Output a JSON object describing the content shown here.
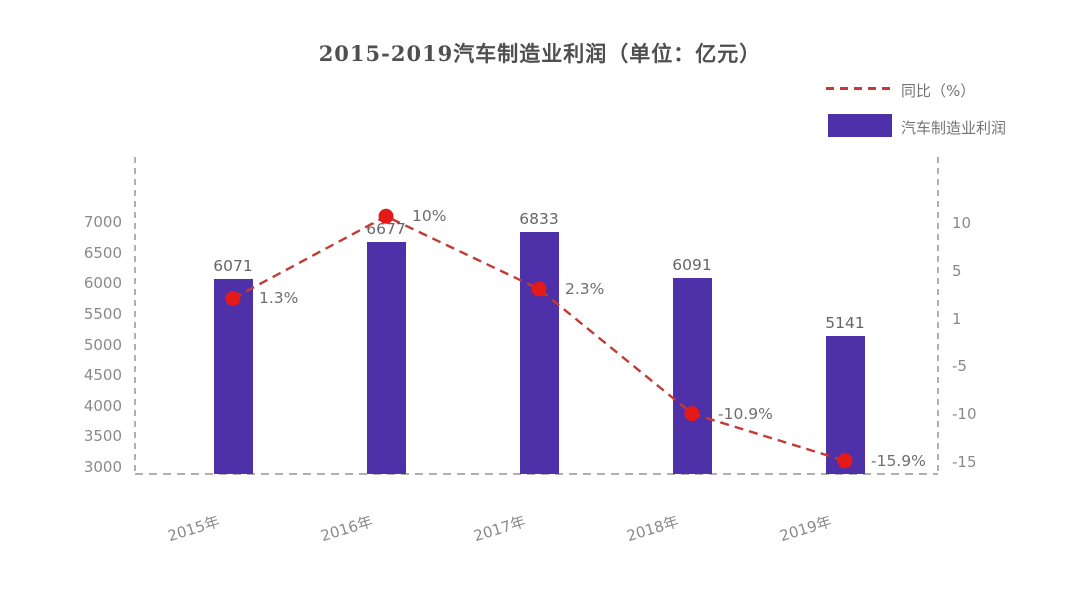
{
  "chart_data": {
    "type": "bar+line",
    "title": "2015-2019汽车制造业利润（单位：亿元）",
    "categories": [
      "2015年",
      "2016年",
      "2017年",
      "2018年",
      "2019年"
    ],
    "series": [
      {
        "name": "汽车制造业利润",
        "type": "bar",
        "axis": "left",
        "unit": "亿元",
        "values": [
          6071,
          6677,
          6833,
          6091,
          5141
        ],
        "value_labels": [
          "6071",
          "6677",
          "6833",
          "6091",
          "5141"
        ],
        "color": "#4e30a8"
      },
      {
        "name": "同比（%）",
        "type": "line",
        "axis": "right",
        "unit": "%",
        "line_style": "dashed",
        "values": [
          1.3,
          10,
          2.3,
          -10.9,
          -15.9
        ],
        "value_labels": [
          "1.3%",
          "10%",
          "2.3%",
          "-10.9%",
          "-15.9%"
        ],
        "marker_color": "#e41a1a",
        "line_color": "#c23b36"
      }
    ],
    "left_axis": {
      "ticks": [
        7000,
        6500,
        6000,
        5500,
        5000,
        4500,
        4000,
        3500,
        3000
      ],
      "min": 2886,
      "max": 8061
    },
    "right_axis": {
      "ticks": [
        10,
        5,
        1,
        -5,
        -10,
        -15
      ],
      "min": -17.3,
      "max": 16.28
    },
    "legend": [
      {
        "label": "同比（%）",
        "swatch": "dashed-line",
        "color": "#c23b36"
      },
      {
        "label": "汽车制造业利润",
        "swatch": "bar",
        "color": "#4e30a8"
      }
    ],
    "legend_position": "top-right",
    "grid": false,
    "background": "#ffffff"
  }
}
